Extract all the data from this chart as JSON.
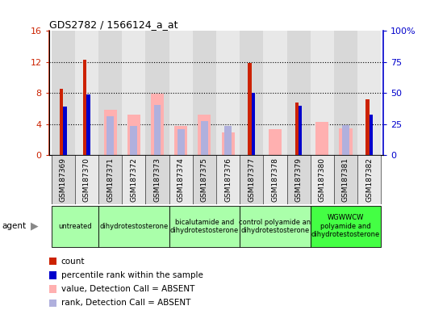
{
  "title": "GDS2782 / 1566124_a_at",
  "samples": [
    "GSM187369",
    "GSM187370",
    "GSM187371",
    "GSM187372",
    "GSM187373",
    "GSM187374",
    "GSM187375",
    "GSM187376",
    "GSM187377",
    "GSM187378",
    "GSM187379",
    "GSM187380",
    "GSM187381",
    "GSM187382"
  ],
  "count": [
    8.5,
    12.3,
    0,
    0,
    0,
    0,
    0,
    0,
    11.9,
    0,
    6.8,
    0,
    0,
    7.2
  ],
  "percentile_rank": [
    6.2,
    7.8,
    0,
    0,
    0,
    0,
    0,
    0,
    8.0,
    0,
    6.4,
    0,
    0,
    5.2
  ],
  "value_absent": [
    0,
    0,
    5.8,
    5.2,
    7.9,
    3.7,
    5.2,
    2.9,
    0,
    3.3,
    0,
    4.3,
    3.4,
    0
  ],
  "rank_absent": [
    0,
    0,
    5.0,
    3.8,
    6.5,
    3.3,
    4.4,
    3.7,
    0,
    0,
    0,
    0,
    3.9,
    0
  ],
  "agent_groups": [
    {
      "label": "untreated",
      "start": 0,
      "end": 1,
      "color": "#aaffaa"
    },
    {
      "label": "dihydrotestosterone",
      "start": 2,
      "end": 4,
      "color": "#aaffaa"
    },
    {
      "label": "bicalutamide and\ndihydrotestosterone",
      "start": 5,
      "end": 7,
      "color": "#aaffaa"
    },
    {
      "label": "control polyamide an\ndihydrotestosterone",
      "start": 8,
      "end": 10,
      "color": "#aaffaa"
    },
    {
      "label": "WGWWCW\npolyamide and\ndihydrotestosterone",
      "start": 11,
      "end": 13,
      "color": "#44ff44"
    }
  ],
  "col_colors": [
    "#d8d8d8",
    "#e8e8e8",
    "#d8d8d8",
    "#e8e8e8",
    "#d8d8d8",
    "#e8e8e8",
    "#d8d8d8",
    "#e8e8e8",
    "#d8d8d8",
    "#e8e8e8",
    "#d8d8d8",
    "#e8e8e8",
    "#d8d8d8",
    "#e8e8e8"
  ],
  "ylim_left": [
    0,
    16
  ],
  "ylim_right": [
    0,
    100
  ],
  "yticks_left": [
    0,
    4,
    8,
    12,
    16
  ],
  "yticks_right": [
    0,
    25,
    50,
    75,
    100
  ],
  "ytick_labels_left": [
    "0",
    "4",
    "8",
    "12",
    "16"
  ],
  "ytick_labels_right": [
    "0",
    "25",
    "50",
    "75",
    "100%"
  ],
  "color_count": "#cc2200",
  "color_percentile": "#0000cc",
  "color_value_absent": "#ffb0b0",
  "color_rank_absent": "#b0b0dd",
  "legend_items": [
    {
      "label": "count",
      "color": "#cc2200"
    },
    {
      "label": "percentile rank within the sample",
      "color": "#0000cc"
    },
    {
      "label": "value, Detection Call = ABSENT",
      "color": "#ffb0b0"
    },
    {
      "label": "rank, Detection Call = ABSENT",
      "color": "#b0b0dd"
    }
  ]
}
